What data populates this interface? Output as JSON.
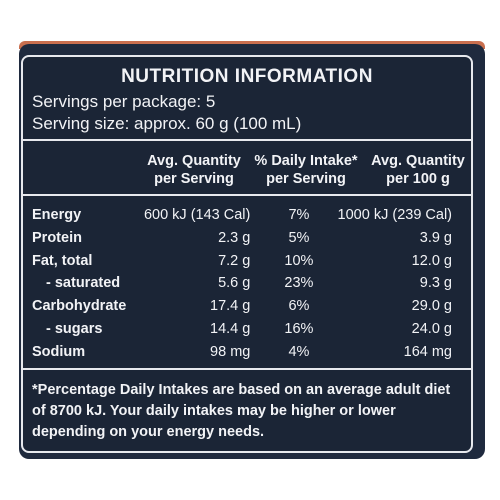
{
  "colors": {
    "background": "#1b2536",
    "border": "#e7e9ee",
    "text": "#f2f3f6",
    "accent_strip": "#c96f4f"
  },
  "title": "NUTRITION INFORMATION",
  "servings_per_package": "Servings per package: 5",
  "serving_size": "Serving size: approx. 60 g (100 mL)",
  "columns": [
    {
      "line1": "Avg. Quantity",
      "line2": "per Serving"
    },
    {
      "line1": "% Daily Intake*",
      "line2": "per Serving"
    },
    {
      "line1": "Avg. Quantity",
      "line2": "per 100 g"
    }
  ],
  "rows": [
    {
      "name": "Energy",
      "per_serving": "600 kJ (143 Cal)",
      "daily_intake": "7%",
      "per_100g": "1000 kJ (239 Cal)"
    },
    {
      "name": "Protein",
      "per_serving": "2.3 g",
      "daily_intake": "5%",
      "per_100g": "3.9 g"
    },
    {
      "name": "Fat, total",
      "per_serving": "7.2 g",
      "daily_intake": "10%",
      "per_100g": "12.0 g"
    },
    {
      "name": "- saturated",
      "per_serving": "5.6 g",
      "daily_intake": "23%",
      "per_100g": "9.3 g"
    },
    {
      "name": "Carbohydrate",
      "per_serving": "17.4 g",
      "daily_intake": "6%",
      "per_100g": "29.0 g"
    },
    {
      "name": "- sugars",
      "per_serving": "14.4 g",
      "daily_intake": "16%",
      "per_100g": "24.0 g"
    },
    {
      "name": "Sodium",
      "per_serving": "98 mg",
      "daily_intake": "4%",
      "per_100g": "164 mg"
    }
  ],
  "footnote": "*Percentage Daily Intakes are based on an average adult diet of 8700 kJ. Your daily intakes may be higher or lower depending on your energy needs."
}
